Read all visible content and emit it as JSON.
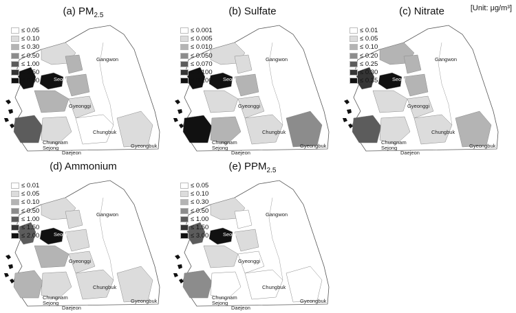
{
  "unit_label": "[Unit: μg/m³]",
  "shades": [
    "#ffffff",
    "#dcdcdc",
    "#b4b4b4",
    "#8c8c8c",
    "#5c5c5c",
    "#353535",
    "#111111"
  ],
  "place_labels": [
    "Gangwon",
    "Seoul",
    "Gyeonggi",
    "Chungbuk",
    "Chungnam",
    "Gyeongbuk",
    "Sejong",
    "Daejeon"
  ],
  "panels": [
    {
      "id": "a",
      "title": "(a) PM",
      "title_sub": "2.5",
      "legend": [
        "≤ 0.05",
        "≤ 0.10",
        "≤ 0.30",
        "≤ 0.50",
        "≤ 1.00",
        "≤ 2.50",
        "≤ 5.00"
      ]
    },
    {
      "id": "b",
      "title": "(b) Sulfate",
      "title_sub": "",
      "legend": [
        "≤ 0.001",
        "≤ 0.005",
        "≤ 0.010",
        "≤ 0.050",
        "≤ 0.070",
        "≤ 0.100",
        "≤ 0.200"
      ]
    },
    {
      "id": "c",
      "title": "(c) Nitrate",
      "title_sub": "",
      "legend": [
        "≤ 0.01",
        "≤ 0.05",
        "≤ 0.10",
        "≤ 0.20",
        "≤ 0.25",
        "≤ 0.30",
        "≤ 0.35"
      ]
    },
    {
      "id": "d",
      "title": "(d) Ammonium",
      "title_sub": "",
      "legend": [
        "≤ 0.01",
        "≤ 0.05",
        "≤ 0.10",
        "≤ 0.50",
        "≤ 1.00",
        "≤ 1.50",
        "≤ 2.00"
      ]
    },
    {
      "id": "e",
      "title": "(e) PPM",
      "title_sub": "2.5",
      "legend": [
        "≤ 0.05",
        "≤ 0.10",
        "≤ 0.30",
        "≤ 0.50",
        "≤ 1.00",
        "≤ 1.50",
        "≤ 3.00"
      ]
    }
  ]
}
